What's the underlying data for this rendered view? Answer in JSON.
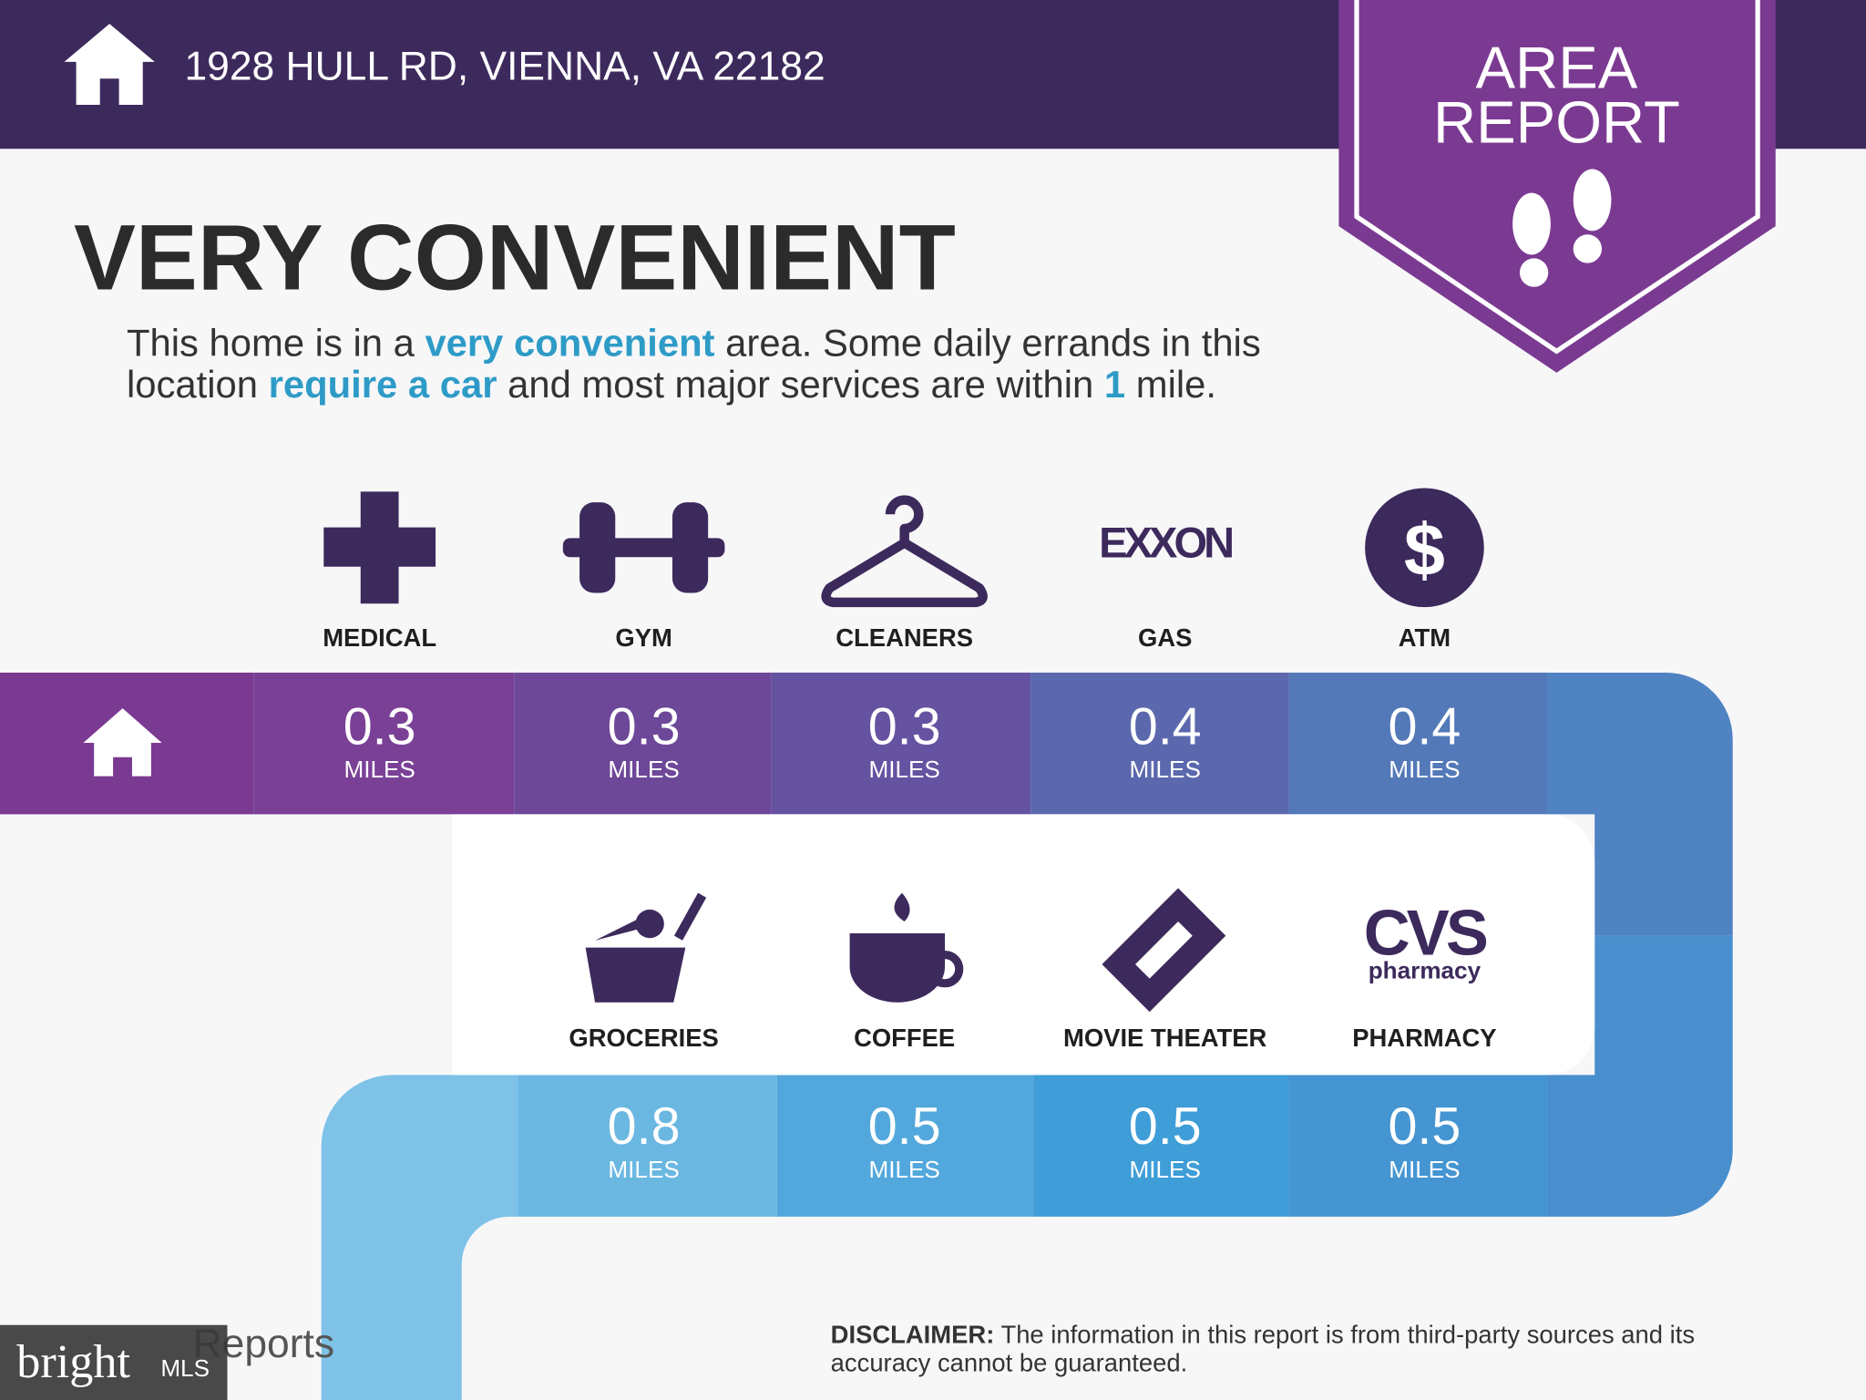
{
  "header": {
    "address": "1928 HULL RD, VIENNA, VA 22182"
  },
  "badge": {
    "line1": "AREA",
    "line2": "REPORT"
  },
  "heading": "VERY CONVENIENT",
  "description": {
    "line1": [
      "This home is in a ",
      "very convenient",
      " area. Some daily errands in this"
    ],
    "line2": [
      "location ",
      "require a car",
      " and most major services are within ",
      "1",
      " mile."
    ]
  },
  "amenities": [
    {
      "label": "MEDICAL",
      "distance": 0.3,
      "unit": "MILES"
    },
    {
      "label": "GYM",
      "distance": 0.3,
      "unit": "MILES"
    },
    {
      "label": "CLEANERS",
      "distance": 0.3,
      "unit": "MILES"
    },
    {
      "label": "GAS",
      "distance": 0.4,
      "unit": "MILES",
      "logo": "EXXON"
    },
    {
      "label": "ATM",
      "distance": 0.4,
      "unit": "MILES",
      "logo": "$"
    },
    {
      "label": "GROCERIES",
      "distance": 0.8,
      "unit": "MILES"
    },
    {
      "label": "COFFEE",
      "distance": 0.5,
      "unit": "MILES"
    },
    {
      "label": "MOVIE THEATER",
      "distance": 0.5,
      "unit": "MILES"
    },
    {
      "label": "PHARMACY",
      "distance": 0.5,
      "unit": "MILES",
      "logo": "CVS",
      "logo_sub": "pharmacy"
    }
  ],
  "footer": {
    "brand": "Reports",
    "disclaimer_label": "DISCLAIMER:",
    "disclaimer_line1": " The information in this report is from third-party sources and its",
    "disclaimer_line2": "accuracy cannot be guaranteed."
  },
  "watermark": {
    "brand": "bright",
    "suffix": "MLS"
  }
}
